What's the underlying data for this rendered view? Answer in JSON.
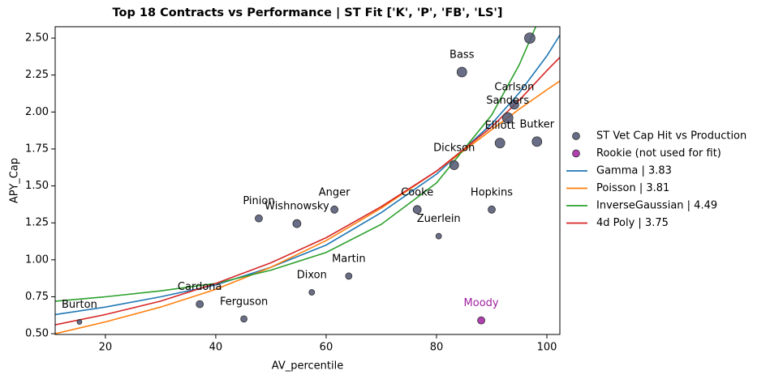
{
  "chart_data": {
    "type": "scatter",
    "title": "Top 18 Contracts vs Performance | ST Fit ['K', 'P', 'FB', 'LS']",
    "x_label": "AV_percentile",
    "y_label": "APY_Cap",
    "xlim": [
      10.9,
      102.35
    ],
    "ylim": [
      0.495,
      2.577
    ],
    "xticks": [
      20,
      40,
      60,
      80,
      100
    ],
    "yticks": [
      {
        "value": 0.5,
        "label": "0.50"
      },
      {
        "value": 0.75,
        "label": "0.75"
      },
      {
        "value": 1.0,
        "label": "1.00"
      },
      {
        "value": 1.25,
        "label": "1.25"
      },
      {
        "value": 1.5,
        "label": "1.50"
      },
      {
        "value": 1.75,
        "label": "1.75"
      },
      {
        "value": 2.0,
        "label": "2.00"
      },
      {
        "value": 2.25,
        "label": "2.25"
      },
      {
        "value": 2.5,
        "label": "2.50"
      }
    ],
    "legend": "right",
    "series": [
      {
        "name": "ST Vet Cap Hit vs Production",
        "kind": "scatter",
        "color": "#4f5370",
        "labels": [
          "Burton",
          "Cardona",
          "Ferguson",
          "Pinion",
          "Wishnowsky",
          "Anger",
          "Dixon",
          "Martin",
          "Cooke",
          "Zuerlein",
          "Dickson",
          "Bass",
          "Hopkins",
          "Elliott",
          "Sanders",
          "Carlson",
          "Butker",
          null
        ],
        "x": [
          15.3,
          37.1,
          45.1,
          47.8,
          54.7,
          61.5,
          57.4,
          64.1,
          76.5,
          80.4,
          83.2,
          84.6,
          90.0,
          91.5,
          92.9,
          94.1,
          98.2,
          96.9
        ],
        "values": [
          0.58,
          0.7,
          0.6,
          1.28,
          1.245,
          1.34,
          0.78,
          0.89,
          1.34,
          1.16,
          1.64,
          2.27,
          1.34,
          1.79,
          1.96,
          2.05,
          1.8,
          2.5
        ],
        "sizes": [
          3,
          4.5,
          4,
          4.5,
          5,
          4.5,
          3.5,
          4,
          5,
          3.5,
          5.5,
          6,
          4.5,
          6,
          6.5,
          5.5,
          6,
          6.5
        ]
      },
      {
        "name": "Rookie (not used for fit)",
        "kind": "scatter",
        "color": "#a020a0",
        "labels": [
          "Moody"
        ],
        "x": [
          88.1
        ],
        "values": [
          0.59
        ],
        "sizes": [
          4.5
        ]
      },
      {
        "name": "Gamma | 3.83",
        "kind": "line",
        "color": "#1f77b4",
        "x": [
          10.9,
          20,
          30,
          40,
          50,
          60,
          70,
          80,
          90,
          95,
          100,
          102.35
        ],
        "values": [
          0.63,
          0.68,
          0.75,
          0.83,
          0.95,
          1.1,
          1.32,
          1.58,
          1.92,
          2.13,
          2.38,
          2.52
        ]
      },
      {
        "name": "Poisson | 3.81",
        "kind": "line",
        "color": "#ff7f0e",
        "x": [
          10.9,
          20,
          30,
          40,
          50,
          60,
          70,
          80,
          90,
          95,
          100,
          102.35
        ],
        "values": [
          0.5,
          0.58,
          0.68,
          0.8,
          0.95,
          1.13,
          1.35,
          1.6,
          1.88,
          2.02,
          2.15,
          2.21
        ]
      },
      {
        "name": "InverseGaussian | 4.49",
        "kind": "line",
        "color": "#2ca02c",
        "x": [
          10.9,
          20,
          30,
          40,
          50,
          60,
          70,
          80,
          90,
          95,
          100
        ],
        "values": [
          0.72,
          0.75,
          0.79,
          0.84,
          0.93,
          1.05,
          1.24,
          1.52,
          1.98,
          2.32,
          2.75
        ]
      },
      {
        "name": "4d Poly | 3.75",
        "kind": "line",
        "color": "#d62728",
        "x": [
          10.9,
          20,
          30,
          40,
          50,
          60,
          70,
          80,
          90,
          95,
          100,
          102.35
        ],
        "values": [
          0.56,
          0.63,
          0.72,
          0.84,
          0.98,
          1.15,
          1.36,
          1.6,
          1.9,
          2.08,
          2.28,
          2.37
        ]
      }
    ]
  }
}
